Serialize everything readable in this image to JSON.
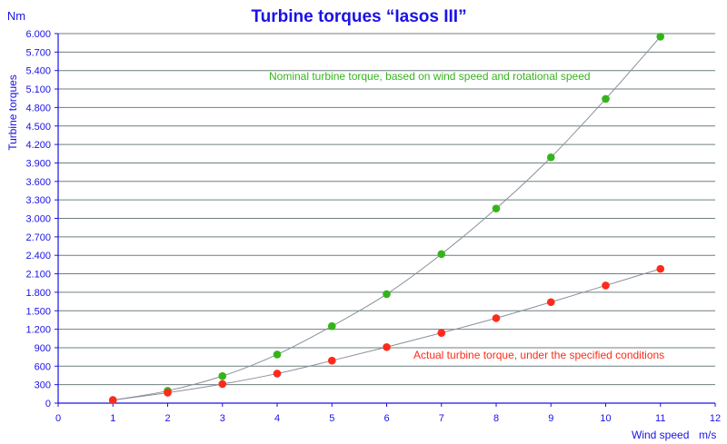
{
  "chart_data": {
    "type": "scatter",
    "title": "Turbine torques “Iasos III”",
    "ylabel": "Turbine torques",
    "yunit": "Nm",
    "xlabel": "Wind speed",
    "xunit": "m/s",
    "xlim": [
      0,
      12
    ],
    "ylim": [
      0,
      6000
    ],
    "xticks": [
      0,
      1,
      2,
      3,
      4,
      5,
      6,
      7,
      8,
      9,
      10,
      11,
      12
    ],
    "xtick_labels": [
      "0",
      "1",
      "2",
      "3",
      "4",
      "5",
      "6",
      "7",
      "8",
      "9",
      "10",
      "11",
      "12"
    ],
    "yticks": [
      0,
      300,
      600,
      900,
      1200,
      1500,
      1800,
      2100,
      2400,
      2700,
      3000,
      3300,
      3600,
      3900,
      4200,
      4500,
      4800,
      5100,
      5400,
      5700,
      6000
    ],
    "ytick_labels": [
      "0",
      "300",
      "600",
      "900",
      "1.200",
      "1.500",
      "1.800",
      "2.100",
      "2.400",
      "2.700",
      "3.000",
      "3.300",
      "3.600",
      "3.900",
      "4.200",
      "4.500",
      "4.800",
      "5.100",
      "5.400",
      "5.700",
      "6.000"
    ],
    "grid": "horizontal",
    "series": [
      {
        "color": "#33b51a",
        "x": [
          1,
          2,
          3,
          4,
          5,
          6,
          7,
          8,
          9,
          10,
          11
        ],
        "y": [
          50,
          200,
          440,
          790,
          1250,
          1770,
          2420,
          3160,
          3990,
          4940,
          5950
        ]
      },
      {
        "color": "#ff2a1a",
        "x": [
          1,
          2,
          3,
          4,
          5,
          6,
          7,
          8,
          9,
          10,
          11
        ],
        "y": [
          50,
          170,
          310,
          480,
          690,
          910,
          1140,
          1380,
          1640,
          1910,
          2180
        ]
      }
    ],
    "annotations": [
      {
        "text": "Nominal turbine torque, based on wind speed and rotational speed",
        "color": "#33b51a"
      },
      {
        "text": "Actual turbine torque, under the specified conditions",
        "color": "#ff2a1a"
      }
    ]
  }
}
